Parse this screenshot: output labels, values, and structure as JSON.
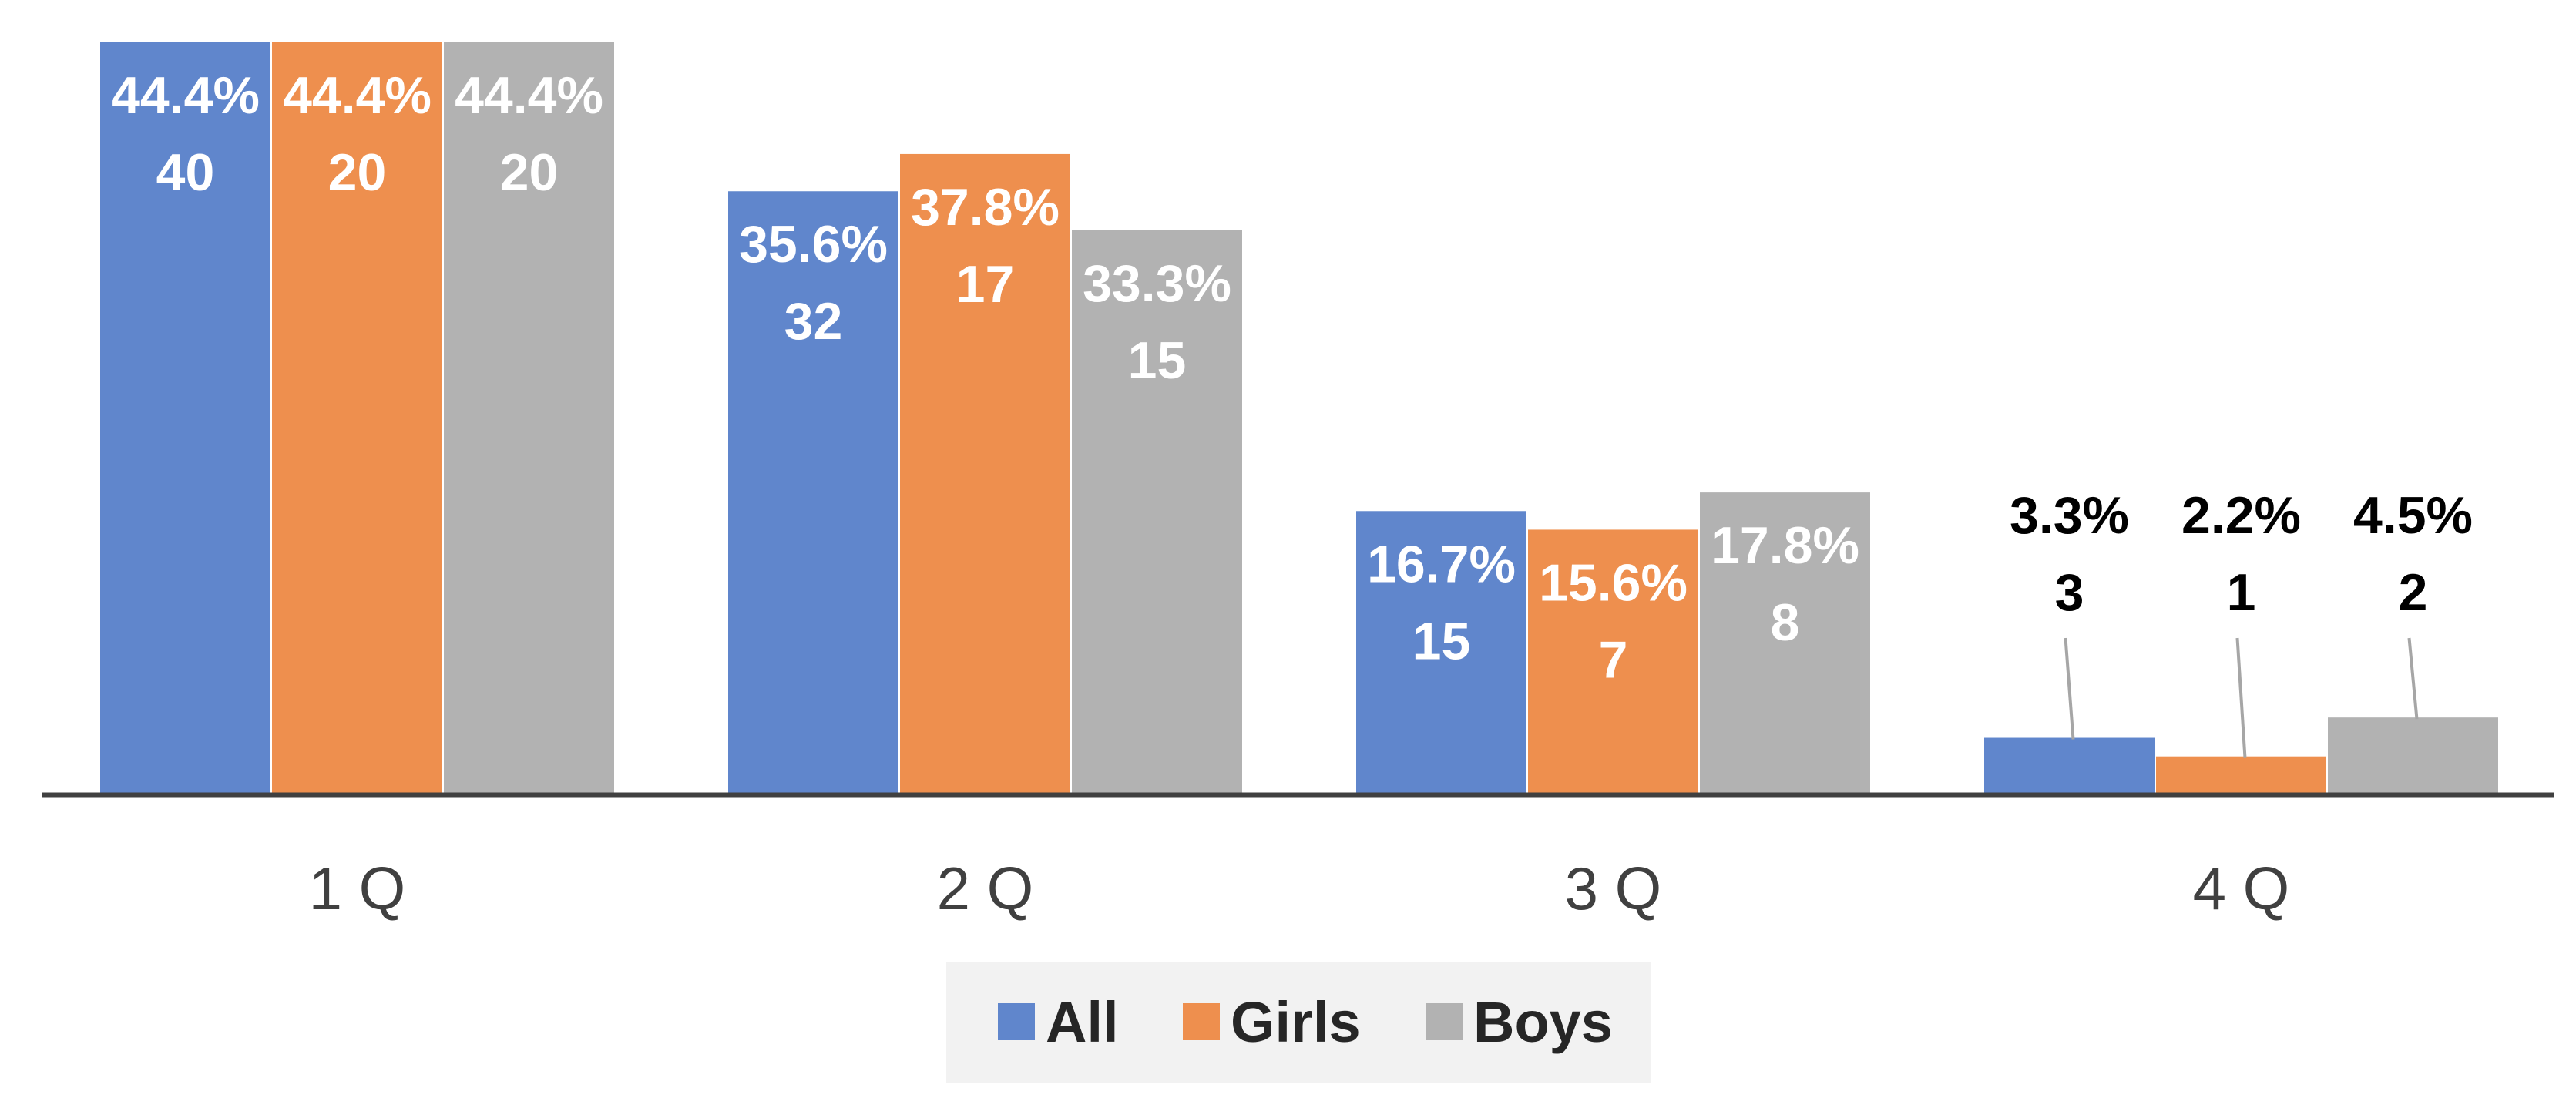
{
  "chart_data": {
    "type": "bar",
    "categories": [
      "1 Q",
      "2 Q",
      "3 Q",
      "4 Q"
    ],
    "series": [
      {
        "name": "All",
        "color": "#6086CC",
        "values": [
          44.4,
          35.6,
          16.7,
          3.3
        ],
        "counts": [
          "40",
          "32",
          "15",
          "3"
        ],
        "pct_labels": [
          "44.4%",
          "35.6%",
          "16.7%",
          "3.3%"
        ]
      },
      {
        "name": "Girls",
        "color": "#EE8F4E",
        "values": [
          44.4,
          37.8,
          15.6,
          2.2
        ],
        "counts": [
          "20",
          "17",
          "7",
          "1"
        ],
        "pct_labels": [
          "44.4%",
          "37.8%",
          "15.6%",
          "2.2%"
        ]
      },
      {
        "name": "Boys",
        "color": "#B2B2B2",
        "values": [
          44.4,
          33.3,
          17.8,
          4.5
        ],
        "counts": [
          "20",
          "15",
          "8",
          "2"
        ],
        "pct_labels": [
          "44.4%",
          "33.3%",
          "17.8%",
          "4.5%"
        ]
      }
    ],
    "ylim": [
      0,
      44.4
    ],
    "grid": false,
    "legend": {
      "position": "bottom"
    }
  }
}
